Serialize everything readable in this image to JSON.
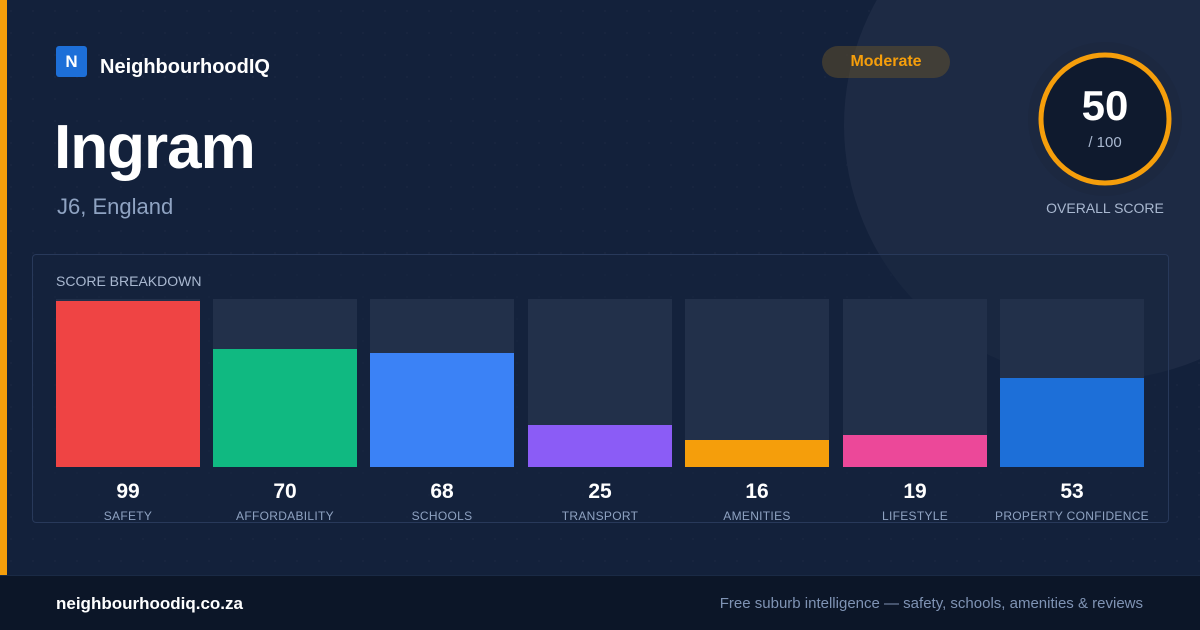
{
  "brand": {
    "logo_letter": "N",
    "name": "NeighbourhoodIQ"
  },
  "place": {
    "name": "Ingram",
    "location": "J6, England"
  },
  "rating_badge": "Moderate",
  "overall": {
    "score": "50",
    "max_label": "/ 100",
    "caption": "OVERALL SCORE",
    "fraction": 0.5
  },
  "breakdown": {
    "title": "SCORE BREAKDOWN",
    "items": [
      {
        "label": "SAFETY",
        "value": 99,
        "color": "#ef4444"
      },
      {
        "label": "AFFORDABILITY",
        "value": 70,
        "color": "#10b981"
      },
      {
        "label": "SCHOOLS",
        "value": 68,
        "color": "#3b82f6"
      },
      {
        "label": "TRANSPORT",
        "value": 25,
        "color": "#8b5cf6"
      },
      {
        "label": "AMENITIES",
        "value": 16,
        "color": "#f59e0b"
      },
      {
        "label": "LIFESTYLE",
        "value": 19,
        "color": "#ec4899"
      },
      {
        "label": "PROPERTY CONFIDENCE",
        "value": 53,
        "color": "#1d6fd8"
      }
    ]
  },
  "footer": {
    "domain": "neighbourhoodiq.co.za",
    "tagline": "Free suburb intelligence — safety, schools, amenities & reviews"
  },
  "colors": {
    "accent": "#f59e0b",
    "brand_blue": "#1d6fd8",
    "background": "#13213b"
  }
}
